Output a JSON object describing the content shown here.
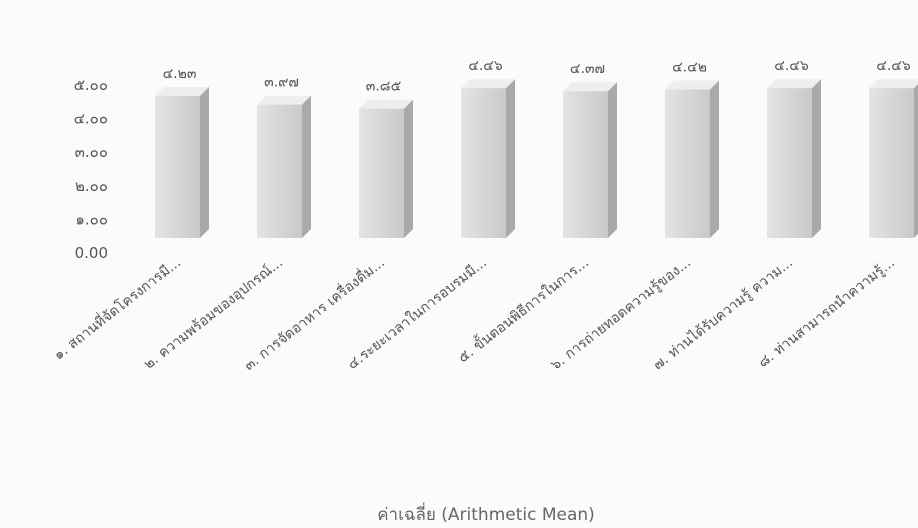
{
  "chart_data": {
    "type": "bar",
    "title": "",
    "xlabel": "ค่าเฉลี่ย (Arithmetic Mean)",
    "ylabel": "",
    "ylim": [
      0,
      5
    ],
    "yticks": [
      "0.00",
      "๑.๐๐",
      "๒.๐๐",
      "๓.๐๐",
      "๔.๐๐",
      "๕.๐๐"
    ],
    "grid": false,
    "legend": "none",
    "bar_color": "#cfcfcf",
    "categories": [
      "๑. สถานที่จัดโครงการมี...",
      "๒. ความพร้อมของอุปกรณ์...",
      "๓. การจัดอาหาร เครื่องดื่ม...",
      "๔.ระยะเวลาในการอบรมมี...",
      "๕. ขั้นตอนพิธีการในการ...",
      "๖. การถ่ายทอดความรู้ของ...",
      "๗. ท่านได้รับความรู้ ความ...",
      "๘. ท่านสามารถนำความรู้..."
    ],
    "values": [
      4.23,
      3.97,
      3.85,
      4.46,
      4.37,
      4.42,
      4.46,
      4.46
    ],
    "value_labels": [
      "๔.๒๓",
      "๓.๙๗",
      "๓.๘๕",
      "๔.๔๖",
      "๔.๓๗",
      "๔.๔๒",
      "๔.๔๖",
      "๔.๔๖"
    ]
  }
}
